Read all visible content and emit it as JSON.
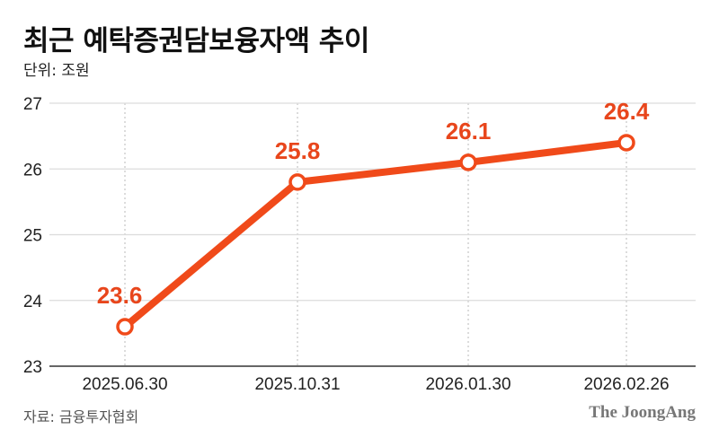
{
  "header": {
    "title": "최근 예탁증권담보융자액 추이",
    "unit": "단위: 조원"
  },
  "footer": {
    "source": "자료: 금융투자협회",
    "brand": "The JoongAng"
  },
  "colors": {
    "line": "#f04a1a",
    "label": "#e8461c",
    "grid": "#dcdcdc",
    "axis": "#333333",
    "marker_fill": "#ffffff"
  },
  "chart_data": {
    "type": "line",
    "title": "최근 예탁증권담보융자액 추이",
    "subtitle": "단위: 조원",
    "xlabel": "",
    "ylabel": "조원",
    "categories": [
      "2025.06.30",
      "2025.10.31",
      "2026.01.30",
      "2026.02.26"
    ],
    "series": [
      {
        "name": "예탁증권담보융자액",
        "values": [
          23.6,
          25.8,
          26.1,
          26.4
        ]
      }
    ],
    "data_labels": [
      "23.6",
      "25.8",
      "26.1",
      "26.4"
    ],
    "ylim": [
      23,
      27
    ],
    "yticks": [
      23,
      24,
      25,
      26,
      27
    ],
    "grid": {
      "horizontal": true,
      "vertical": "dotted at categories"
    },
    "legend": null,
    "annotation": "자료: 금융투자협회"
  }
}
